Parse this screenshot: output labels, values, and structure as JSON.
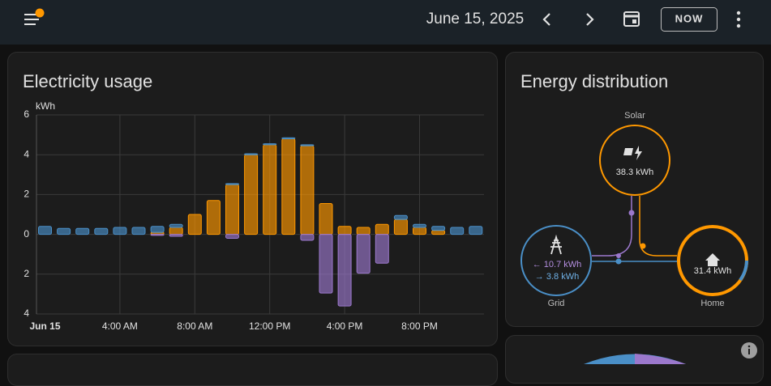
{
  "header": {
    "date": "June 15, 2025",
    "now_button": "NOW"
  },
  "chart_data": {
    "type": "bar",
    "title": "Electricity usage",
    "ylabel": "kWh",
    "categories": [
      "Jun 15",
      null,
      null,
      null,
      "4:00 AM",
      null,
      null,
      null,
      "8:00 AM",
      null,
      null,
      null,
      "12:00 PM",
      null,
      null,
      null,
      "4:00 PM",
      null,
      null,
      null,
      "8:00 PM",
      null,
      null,
      null
    ],
    "series": [
      {
        "color": "#ff9800",
        "values": [
          0,
          0,
          0,
          0,
          0,
          0,
          0.1,
          0.35,
          1.0,
          1.7,
          2.5,
          4.0,
          4.5,
          4.8,
          4.45,
          1.55,
          0.4,
          0.35,
          0.5,
          0.75,
          0.35,
          0.2,
          0,
          0
        ]
      },
      {
        "color": "#4a8fc7",
        "values": [
          0.4,
          0.3,
          0.3,
          0.3,
          0.35,
          0.35,
          0.3,
          0.15,
          0,
          0,
          0.05,
          0.05,
          0.05,
          0.05,
          0.05,
          0,
          0,
          0,
          0,
          0.2,
          0.15,
          0.2,
          0.35,
          0.4
        ]
      },
      {
        "color": "#9b78cc",
        "values": [
          0,
          0,
          0,
          0,
          0,
          0,
          -0.05,
          -0.1,
          0,
          0,
          -0.2,
          0,
          0,
          0,
          -0.3,
          -2.95,
          -3.6,
          -1.95,
          -1.45,
          0,
          0,
          0,
          0,
          0
        ]
      }
    ],
    "ylim": [
      -4,
      6
    ],
    "yticks": [
      6,
      4,
      2,
      0,
      {
        "value": -2,
        "label": "2"
      },
      {
        "value": -4,
        "label": "4"
      }
    ],
    "grid": true
  },
  "distribution": {
    "title": "Energy distribution",
    "solar": {
      "label": "Solar",
      "value": "38.3 kWh"
    },
    "grid": {
      "label": "Grid",
      "returned": "← 10.7 kWh",
      "consumed": "→ 3.8 kWh"
    },
    "home": {
      "label": "Home",
      "value": "31.4 kWh"
    }
  }
}
